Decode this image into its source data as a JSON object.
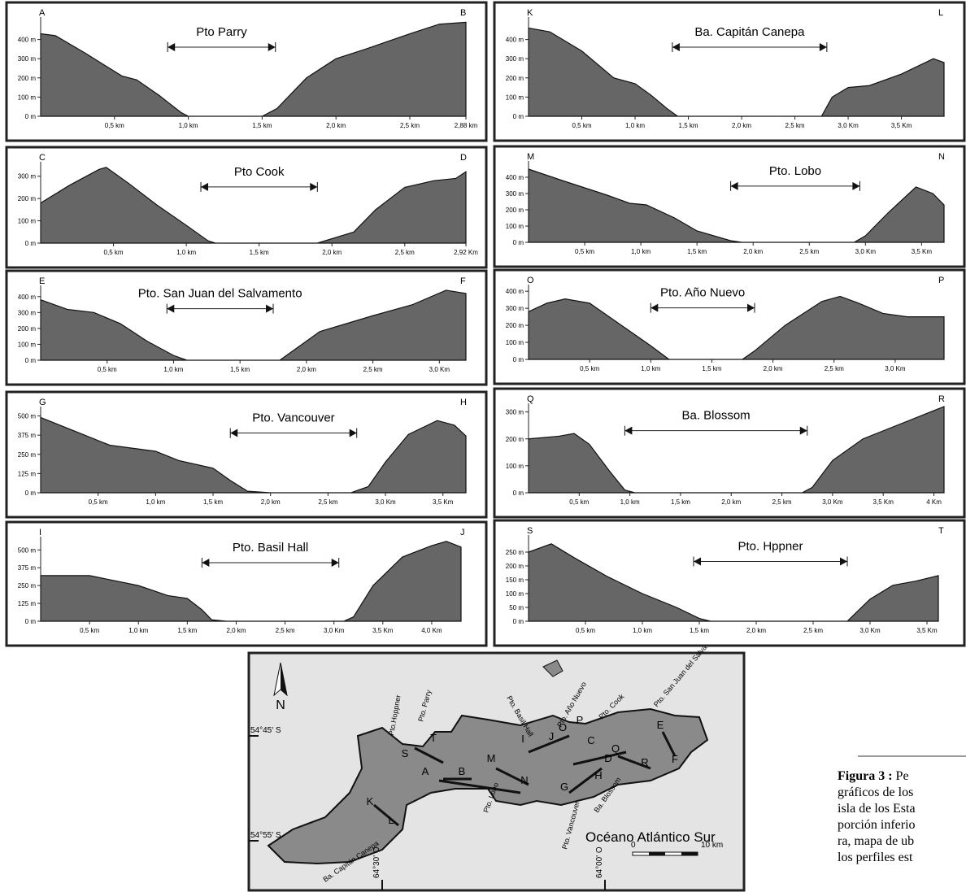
{
  "chart_data": [
    {
      "type": "area",
      "start_label": "A",
      "end_label": "B",
      "title": "Pto Parry",
      "color": "#666666",
      "x": [
        0,
        0.1,
        0.3,
        0.55,
        0.65,
        0.8,
        0.95,
        1.0,
        1.5,
        1.6,
        1.8,
        2.0,
        2.2,
        2.5,
        2.7,
        2.88
      ],
      "values": [
        430,
        420,
        330,
        210,
        190,
        110,
        20,
        0,
        0,
        40,
        200,
        300,
        350,
        430,
        480,
        490
      ],
      "xlim": [
        0,
        2.88
      ],
      "ylim": [
        0,
        500
      ],
      "span": [
        0.86,
        1.59
      ],
      "xticks": [
        {
          "value": 0.5,
          "label": "0,5 km"
        },
        {
          "value": 1.0,
          "label": "1,0 km"
        },
        {
          "value": 1.5,
          "label": "1,5 km"
        },
        {
          "value": 2.0,
          "label": "2,0 km"
        },
        {
          "value": 2.5,
          "label": "2,5 km"
        },
        {
          "value": 2.88,
          "label": "2,88 km"
        }
      ],
      "yticks": [
        {
          "value": 0,
          "label": "0 m"
        },
        {
          "value": 100,
          "label": "100 m"
        },
        {
          "value": 200,
          "label": "200 m"
        },
        {
          "value": 300,
          "label": "300 m"
        },
        {
          "value": 400,
          "label": "400 m"
        }
      ]
    },
    {
      "type": "area",
      "start_label": "K",
      "end_label": "L",
      "title": "Ba. Capitán Canepa",
      "color": "#666666",
      "x": [
        0,
        0.2,
        0.5,
        0.8,
        1.0,
        1.15,
        1.3,
        1.4,
        2.75,
        2.85,
        3.0,
        3.2,
        3.5,
        3.8,
        3.9
      ],
      "values": [
        460,
        440,
        340,
        200,
        170,
        110,
        40,
        0,
        0,
        100,
        150,
        160,
        220,
        300,
        280
      ],
      "xlim": [
        0,
        3.9
      ],
      "ylim": [
        0,
        500
      ],
      "span": [
        1.35,
        2.8
      ],
      "xticks": [
        {
          "value": 0.5,
          "label": "0,5 km"
        },
        {
          "value": 1.0,
          "label": "1,0 km"
        },
        {
          "value": 1.5,
          "label": "1,5 km"
        },
        {
          "value": 2.0,
          "label": "2,0 km"
        },
        {
          "value": 2.5,
          "label": "2,5 km"
        },
        {
          "value": 3.0,
          "label": "3,0 Km"
        },
        {
          "value": 3.5,
          "label": "3,5 Km"
        }
      ],
      "yticks": [
        {
          "value": 0,
          "label": "0 m"
        },
        {
          "value": 100,
          "label": "100 m"
        },
        {
          "value": 200,
          "label": "200 m"
        },
        {
          "value": 300,
          "label": "300 m"
        },
        {
          "value": 400,
          "label": "400 m"
        }
      ]
    },
    {
      "type": "area",
      "start_label": "C",
      "end_label": "D",
      "title": "Pto Cook",
      "color": "#666666",
      "x": [
        0,
        0.2,
        0.4,
        0.45,
        0.6,
        0.8,
        1.0,
        1.15,
        1.2,
        1.9,
        2.05,
        2.15,
        2.3,
        2.5,
        2.7,
        2.85,
        2.92
      ],
      "values": [
        180,
        260,
        330,
        340,
        270,
        170,
        80,
        10,
        0,
        0,
        30,
        50,
        150,
        250,
        280,
        290,
        320
      ],
      "xlim": [
        0,
        2.92
      ],
      "ylim": [
        0,
        350
      ],
      "span": [
        1.1,
        1.9
      ],
      "xticks": [
        {
          "value": 0.5,
          "label": "0,5 km"
        },
        {
          "value": 1.0,
          "label": "1,0 km"
        },
        {
          "value": 1.5,
          "label": "1,5 km"
        },
        {
          "value": 2.0,
          "label": "2,0 km"
        },
        {
          "value": 2.5,
          "label": "2,5 km"
        },
        {
          "value": 2.92,
          "label": "2,92 Km"
        }
      ],
      "yticks": [
        {
          "value": 0,
          "label": "0 m"
        },
        {
          "value": 100,
          "label": "100 m"
        },
        {
          "value": 200,
          "label": "200 m"
        },
        {
          "value": 300,
          "label": "300 m"
        }
      ]
    },
    {
      "type": "area",
      "start_label": "M",
      "end_label": "N",
      "title": "Pto. Lobo",
      "color": "#666666",
      "x": [
        0,
        0.3,
        0.7,
        0.9,
        1.05,
        1.3,
        1.5,
        1.8,
        1.9,
        2.9,
        3.0,
        3.2,
        3.45,
        3.6,
        3.7
      ],
      "values": [
        450,
        380,
        290,
        240,
        230,
        150,
        70,
        10,
        0,
        0,
        40,
        180,
        340,
        300,
        230
      ],
      "xlim": [
        0,
        3.7
      ],
      "ylim": [
        0,
        480
      ],
      "span": [
        1.8,
        2.95
      ],
      "xticks": [
        {
          "value": 0.5,
          "label": "0,5 km"
        },
        {
          "value": 1.0,
          "label": "1,0 km"
        },
        {
          "value": 1.5,
          "label": "1,5 km"
        },
        {
          "value": 2.0,
          "label": "2,0 km"
        },
        {
          "value": 2.5,
          "label": "2,5 km"
        },
        {
          "value": 3.0,
          "label": "3,0 Km"
        },
        {
          "value": 3.5,
          "label": "3,5 Km"
        }
      ],
      "yticks": [
        {
          "value": 0,
          "label": "0 m"
        },
        {
          "value": 100,
          "label": "100 m"
        },
        {
          "value": 200,
          "label": "200 m"
        },
        {
          "value": 300,
          "label": "300 m"
        },
        {
          "value": 400,
          "label": "400 m"
        }
      ]
    },
    {
      "type": "area",
      "start_label": "E",
      "end_label": "F",
      "title": "Pto. San Juan del Salvamento",
      "color": "#666666",
      "x": [
        0,
        0.2,
        0.4,
        0.6,
        0.8,
        1.0,
        1.1,
        1.8,
        1.9,
        2.1,
        2.5,
        2.8,
        3.05,
        3.2
      ],
      "values": [
        380,
        320,
        300,
        230,
        120,
        30,
        0,
        0,
        60,
        180,
        280,
        350,
        440,
        420
      ],
      "xlim": [
        0,
        3.2
      ],
      "ylim": [
        0,
        450
      ],
      "span": [
        0.95,
        1.75
      ],
      "xticks": [
        {
          "value": 0.5,
          "label": "0,5 km"
        },
        {
          "value": 1.0,
          "label": "1,0 km"
        },
        {
          "value": 1.5,
          "label": "1,5 km"
        },
        {
          "value": 2.0,
          "label": "2,0 km"
        },
        {
          "value": 2.5,
          "label": "2,5 km"
        },
        {
          "value": 3.0,
          "label": "3,0 Km"
        }
      ],
      "yticks": [
        {
          "value": 0,
          "label": "0 m"
        },
        {
          "value": 100,
          "label": "100 m"
        },
        {
          "value": 200,
          "label": "200 m"
        },
        {
          "value": 300,
          "label": "300 m"
        },
        {
          "value": 400,
          "label": "400 m"
        }
      ]
    },
    {
      "type": "area",
      "start_label": "O",
      "end_label": "P",
      "title": "Pto. Año Nuevo",
      "color": "#666666",
      "x": [
        0,
        0.15,
        0.3,
        0.5,
        0.8,
        1.0,
        1.15,
        1.75,
        1.85,
        2.1,
        2.4,
        2.55,
        2.7,
        2.9,
        3.1,
        3.4
      ],
      "values": [
        280,
        330,
        355,
        330,
        180,
        80,
        0,
        0,
        50,
        200,
        340,
        370,
        330,
        270,
        250,
        250
      ],
      "xlim": [
        0,
        3.4
      ],
      "ylim": [
        0,
        420
      ],
      "span": [
        1.0,
        1.85
      ],
      "xticks": [
        {
          "value": 0.5,
          "label": "0,5 km"
        },
        {
          "value": 1.0,
          "label": "1,0 km"
        },
        {
          "value": 1.5,
          "label": "1,5 km"
        },
        {
          "value": 2.0,
          "label": "2,0 km"
        },
        {
          "value": 2.5,
          "label": "2,5 km"
        },
        {
          "value": 3.0,
          "label": "3,0 Km"
        }
      ],
      "yticks": [
        {
          "value": 0,
          "label": "0 m"
        },
        {
          "value": 100,
          "label": "100 m"
        },
        {
          "value": 200,
          "label": "200 m"
        },
        {
          "value": 300,
          "label": "300 m"
        },
        {
          "value": 400,
          "label": "400 m"
        }
      ]
    },
    {
      "type": "area",
      "start_label": "G",
      "end_label": "H",
      "title": "Pto. Vancouver",
      "color": "#666666",
      "x": [
        0,
        0.3,
        0.6,
        0.8,
        1.0,
        1.2,
        1.5,
        1.65,
        1.8,
        2.0,
        2.7,
        2.85,
        3.0,
        3.2,
        3.45,
        3.6,
        3.7
      ],
      "values": [
        490,
        400,
        310,
        290,
        270,
        210,
        160,
        80,
        10,
        0,
        0,
        40,
        200,
        380,
        470,
        440,
        370
      ],
      "xlim": [
        0,
        3.7
      ],
      "ylim": [
        0,
        540
      ],
      "span": [
        1.65,
        2.75
      ],
      "xticks": [
        {
          "value": 0.5,
          "label": "0,5 km"
        },
        {
          "value": 1.0,
          "label": "1,0 km"
        },
        {
          "value": 1.5,
          "label": "1,5 km"
        },
        {
          "value": 2.0,
          "label": "2,0 km"
        },
        {
          "value": 2.5,
          "label": "2,5 km"
        },
        {
          "value": 3.0,
          "label": "3,0 Km"
        },
        {
          "value": 3.5,
          "label": "3,5 Km"
        }
      ],
      "yticks": [
        {
          "value": 0,
          "label": "0 m"
        },
        {
          "value": 125,
          "label": "125 m"
        },
        {
          "value": 250,
          "label": "250 m"
        },
        {
          "value": 375,
          "label": "375 m"
        },
        {
          "value": 500,
          "label": "500 m"
        }
      ]
    },
    {
      "type": "area",
      "start_label": "Q",
      "end_label": "R",
      "title": "Ba. Blossom",
      "color": "#666666",
      "x": [
        0,
        0.3,
        0.45,
        0.6,
        0.8,
        0.95,
        1.05,
        2.7,
        2.8,
        3.0,
        3.3,
        3.7,
        4.1
      ],
      "values": [
        200,
        210,
        220,
        180,
        80,
        10,
        0,
        0,
        20,
        120,
        200,
        260,
        320
      ],
      "xlim": [
        0,
        4.1
      ],
      "ylim": [
        0,
        320
      ],
      "span": [
        0.95,
        2.75
      ],
      "xticks": [
        {
          "value": 0.5,
          "label": "0,5 km"
        },
        {
          "value": 1.0,
          "label": "1,0 km"
        },
        {
          "value": 1.5,
          "label": "1,5 km"
        },
        {
          "value": 2.0,
          "label": "2,0 km"
        },
        {
          "value": 2.5,
          "label": "2,5 km"
        },
        {
          "value": 3.0,
          "label": "3,0 Km"
        },
        {
          "value": 3.5,
          "label": "3,5 Km"
        },
        {
          "value": 4,
          "label": "4 Km"
        }
      ],
      "yticks": [
        {
          "value": 0,
          "label": "0 m"
        },
        {
          "value": 100,
          "label": "100 m"
        },
        {
          "value": 200,
          "label": "200 m"
        },
        {
          "value": 300,
          "label": "300 m"
        }
      ]
    },
    {
      "type": "area",
      "start_label": "I",
      "end_label": "J",
      "title": "Pto. Basil Hall",
      "color": "#666666",
      "x": [
        0,
        0.5,
        1.0,
        1.3,
        1.5,
        1.65,
        1.75,
        1.9,
        3.1,
        3.2,
        3.4,
        3.7,
        4.0,
        4.15,
        4.3
      ],
      "values": [
        320,
        320,
        250,
        180,
        160,
        80,
        10,
        0,
        0,
        30,
        250,
        450,
        530,
        560,
        520
      ],
      "xlim": [
        0,
        4.35
      ],
      "ylim": [
        0,
        570
      ],
      "span": [
        1.65,
        3.05
      ],
      "xticks": [
        {
          "value": 0.5,
          "label": "0,5 km"
        },
        {
          "value": 1.0,
          "label": "1,0 km"
        },
        {
          "value": 1.5,
          "label": "1,5 km"
        },
        {
          "value": 2.0,
          "label": "2,0 km"
        },
        {
          "value": 2.5,
          "label": "2,5 km"
        },
        {
          "value": 3.0,
          "label": "3,0 Km"
        },
        {
          "value": 3.5,
          "label": "3,5 Km"
        },
        {
          "value": 4.0,
          "label": "4,0 Km"
        }
      ],
      "yticks": [
        {
          "value": 0,
          "label": "0 m"
        },
        {
          "value": 125,
          "label": "125 m"
        },
        {
          "value": 250,
          "label": "250 m"
        },
        {
          "value": 375,
          "label": "375 m"
        },
        {
          "value": 500,
          "label": "500 m"
        }
      ]
    },
    {
      "type": "area",
      "start_label": "S",
      "end_label": "T",
      "title": "Pto. Hppner",
      "color": "#666666",
      "x": [
        0,
        0.2,
        0.4,
        0.7,
        1.0,
        1.3,
        1.5,
        1.6,
        2.8,
        3.0,
        3.2,
        3.4,
        3.6
      ],
      "values": [
        250,
        280,
        230,
        160,
        100,
        50,
        10,
        0,
        0,
        80,
        130,
        145,
        165
      ],
      "xlim": [
        0,
        3.65
      ],
      "ylim": [
        0,
        300
      ],
      "span": [
        1.45,
        2.8
      ],
      "xticks": [
        {
          "value": 0.5,
          "label": "0,5 km"
        },
        {
          "value": 1.0,
          "label": "1,0 km"
        },
        {
          "value": 1.5,
          "label": "1,5 km"
        },
        {
          "value": 2.0,
          "label": "2,0 km"
        },
        {
          "value": 2.5,
          "label": "2,5 km"
        },
        {
          "value": 3.0,
          "label": "3,0 Km"
        },
        {
          "value": 3.5,
          "label": "3,5 Km"
        }
      ],
      "yticks": [
        {
          "value": 0,
          "label": "0 m"
        },
        {
          "value": 50,
          "label": "50 m"
        },
        {
          "value": 100,
          "label": "100 m"
        },
        {
          "value": 150,
          "label": "150 m"
        },
        {
          "value": 200,
          "label": "200 m"
        },
        {
          "value": 250,
          "label": "250 m"
        }
      ]
    }
  ],
  "map": {
    "north": "N",
    "lat_top": "54°45' S",
    "lat_bottom": "54°55' S",
    "lon_left": "64°30' O",
    "lon_right": "64°00' O",
    "ocean": "Océano Atlántico Sur",
    "scale_start": "0",
    "scale_end": "10 km",
    "places": [
      "Pto.Hoppner",
      "Pto. Parry",
      "Pto. Basil Hall",
      "Pto. Año Nuevo",
      "Pto. Cook",
      "Pto. San Juan del Salvamento",
      "Ba. Capitán Canepa",
      "Pto. Lobo",
      "Pto. Vancouver",
      "Ba. Blossom"
    ],
    "letters": [
      "A",
      "B",
      "C",
      "D",
      "E",
      "F",
      "G",
      "H",
      "I",
      "J",
      "K",
      "L",
      "M",
      "N",
      "O",
      "P",
      "Q",
      "R",
      "S",
      "T"
    ]
  },
  "caption": {
    "label": "Figura 3 :",
    "lines": [
      "Pe",
      "gráficos de los",
      "isla de los Esta",
      "porción inferio",
      "ra, mapa de ub",
      "los perfiles est"
    ]
  }
}
